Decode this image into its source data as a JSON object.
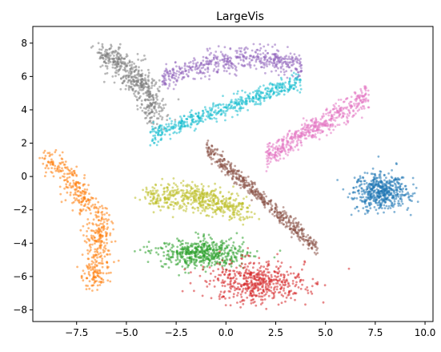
{
  "chart_data": {
    "type": "scatter",
    "title": "LargeVis",
    "xlabel": "",
    "ylabel": "",
    "xlim": [
      -9.7,
      10.4
    ],
    "ylim": [
      -8.7,
      9.0
    ],
    "xticks": [
      -7.5,
      -5.0,
      -2.5,
      0.0,
      2.5,
      5.0,
      7.5,
      10.0
    ],
    "xtick_labels": [
      "−7.5",
      "−5.0",
      "−2.5",
      "0.0",
      "2.5",
      "5.0",
      "7.5",
      "10.0"
    ],
    "yticks": [
      -8,
      -6,
      -4,
      -2,
      0,
      2,
      4,
      6,
      8
    ],
    "ytick_labels": [
      "−8",
      "−6",
      "−4",
      "−2",
      "0",
      "2",
      "4",
      "6",
      "8"
    ],
    "grid": false,
    "legend": false,
    "marker_alpha": 0.55,
    "clusters": [
      {
        "color": "#1f77b4",
        "center": [
          7.8,
          -0.9
        ],
        "spread": [
          1.2,
          1.0
        ],
        "shape": "blob"
      },
      {
        "color": "#ff7f0e",
        "center": [
          -6.8,
          -2.6
        ],
        "spread": [
          1.0,
          3.3
        ],
        "shape": "crescent-left"
      },
      {
        "color": "#2ca02c",
        "center": [
          -1.2,
          -4.6
        ],
        "spread": [
          2.0,
          0.8
        ],
        "shape": "blob"
      },
      {
        "color": "#d62728",
        "center": [
          1.6,
          -6.3
        ],
        "spread": [
          2.2,
          1.1
        ],
        "shape": "blob"
      },
      {
        "color": "#9467bd",
        "center": [
          0.3,
          6.4
        ],
        "spread": [
          3.4,
          0.9
        ],
        "shape": "arc"
      },
      {
        "color": "#8c564b",
        "center": [
          1.8,
          -1.3
        ],
        "spread": [
          0.5,
          0.4
        ],
        "shape": "diagonal"
      },
      {
        "color": "#e377c2",
        "center": [
          4.6,
          3.0
        ],
        "spread": [
          1.4,
          0.6
        ],
        "shape": "diagonal-up"
      },
      {
        "color": "#7f7f7f",
        "center": [
          -4.8,
          5.5
        ],
        "spread": [
          1.4,
          2.0
        ],
        "shape": "crescent-top"
      },
      {
        "color": "#bcbd22",
        "center": [
          -1.4,
          -1.2
        ],
        "spread": [
          2.4,
          0.6
        ],
        "shape": "band"
      },
      {
        "color": "#17becf",
        "center": [
          0.0,
          4.1
        ],
        "spread": [
          3.8,
          0.45
        ],
        "shape": "streak"
      }
    ]
  }
}
